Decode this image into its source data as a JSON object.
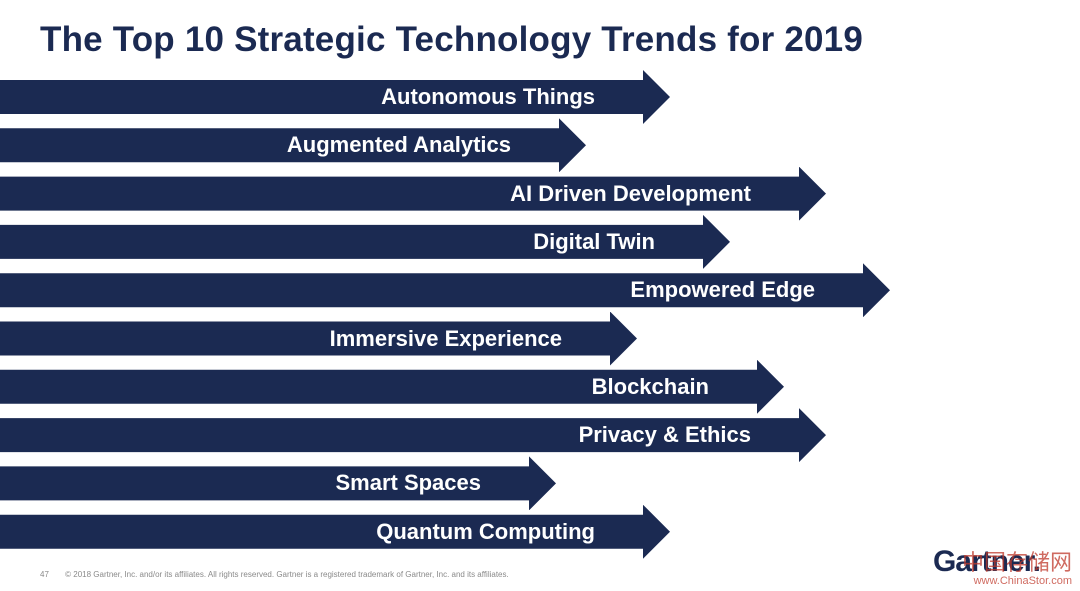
{
  "title": "The Top 10 Strategic Technology Trends for 2019",
  "trends": [
    {
      "label": "Autonomous Things",
      "length": 0.62
    },
    {
      "label": "Augmented Analytics",
      "length": 0.543
    },
    {
      "label": "AI Driven Development",
      "length": 0.765
    },
    {
      "label": "Digital Twin",
      "length": 0.676
    },
    {
      "label": "Empowered Edge",
      "length": 0.824
    },
    {
      "label": "Immersive Experience",
      "length": 0.59
    },
    {
      "label": "Blockchain",
      "length": 0.726
    },
    {
      "label": "Privacy & Ethics",
      "length": 0.765
    },
    {
      "label": "Smart Spaces",
      "length": 0.515
    },
    {
      "label": "Quantum Computing",
      "length": 0.62
    }
  ],
  "footer": {
    "page_number": "47",
    "copyright": "© 2018 Gartner, Inc. and/or its affiliates. All rights reserved. Gartner is a registered trademark of Gartner, Inc. and its affiliates."
  },
  "logo": "Gartner.",
  "watermark": {
    "chinese": "中国存储网",
    "url": "www.ChinaStor.com"
  },
  "colors": {
    "arrow_fill": "#1b2a52",
    "title_text": "#1b2a52",
    "label_text": "#ffffff"
  }
}
